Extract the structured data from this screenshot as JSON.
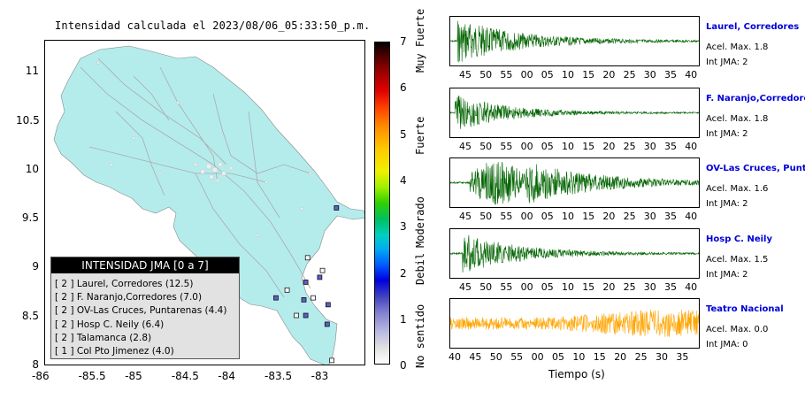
{
  "map": {
    "title": "Intensidad calculada el 2023/08/06_05:33:50_p.m.",
    "x_ticks": [
      "-86",
      "-85.5",
      "-85",
      "-84.5",
      "-84",
      "-83.5",
      "-83"
    ],
    "y_ticks": [
      "11",
      "10.5",
      "10",
      "9.5",
      "9",
      "8.5",
      "8"
    ],
    "land_color": "#b4ecec",
    "stations": [
      {
        "lon": -82.87,
        "lat": 9.62,
        "intensity": 2
      },
      {
        "lon": -83.18,
        "lat": 9.11,
        "intensity": 0
      },
      {
        "lon": -83.02,
        "lat": 8.98,
        "intensity": 0
      },
      {
        "lon": -83.05,
        "lat": 8.91,
        "intensity": 2
      },
      {
        "lon": -83.2,
        "lat": 8.86,
        "intensity": 2
      },
      {
        "lon": -83.4,
        "lat": 8.78,
        "intensity": 0
      },
      {
        "lon": -83.12,
        "lat": 8.7,
        "intensity": 0
      },
      {
        "lon": -83.52,
        "lat": 8.7,
        "intensity": 2
      },
      {
        "lon": -83.22,
        "lat": 8.68,
        "intensity": 2
      },
      {
        "lon": -82.96,
        "lat": 8.63,
        "intensity": 2
      },
      {
        "lon": -83.2,
        "lat": 8.52,
        "intensity": 2
      },
      {
        "lon": -83.3,
        "lat": 8.52,
        "intensity": 0
      },
      {
        "lon": -82.97,
        "lat": 8.43,
        "intensity": 2
      },
      {
        "lon": -82.92,
        "lat": 8.06,
        "intensity": 0
      }
    ]
  },
  "colorbar": {
    "numbers": [
      "7",
      "6",
      "5",
      "4",
      "3",
      "2",
      "1",
      "0"
    ],
    "categories": [
      "Muy Fuerte",
      "Fuerte",
      "Moderado",
      "Debil",
      "No sentido"
    ]
  },
  "legend": {
    "title": "INTENSIDAD JMA [0 a 7]",
    "items": [
      "[ 2 ] Laurel, Corredores (12.5)",
      "[ 2 ] F. Naranjo,Corredores (7.0)",
      "[ 2 ] OV-Las Cruces, Puntarenas (4.4)",
      "[ 2 ] Hosp C. Neily (6.4)",
      "[ 2 ] Talamanca (2.8)",
      "[ 1 ] Col Pto Jimenez (4.0)"
    ]
  },
  "traces": [
    {
      "name": "Laurel, Corredores",
      "acel": "Acel. Max. 1.8",
      "int": "Int JMA: 2",
      "color": "#006400",
      "ticks": [
        "45",
        "50",
        "55",
        "00",
        "05",
        "10",
        "15",
        "20",
        "25",
        "30",
        "35",
        "40"
      ],
      "onset": 0.03,
      "decay": 0.25,
      "amp": 0.95
    },
    {
      "name": "F. Naranjo,Corredores",
      "acel": "Acel. Max. 1.8",
      "int": "Int JMA: 2",
      "color": "#006400",
      "ticks": [
        "45",
        "50",
        "55",
        "00",
        "05",
        "10",
        "15",
        "20",
        "25",
        "30",
        "35",
        "40"
      ],
      "onset": 0.02,
      "decay": 0.2,
      "amp": 0.8
    },
    {
      "name": "OV-Las Cruces, Puntar",
      "acel": "Acel. Max. 1.6",
      "int": "Int JMA: 2",
      "color": "#006400",
      "ticks": [
        "45",
        "50",
        "55",
        "00",
        "05",
        "10",
        "15",
        "20",
        "25",
        "30",
        "35",
        "40"
      ],
      "onset": 0.08,
      "decay": 0.28,
      "amp": 0.95
    },
    {
      "name": "Hosp C. Neily",
      "acel": "Acel. Max. 1.5",
      "int": "Int JMA: 2",
      "color": "#006400",
      "ticks": [
        "45",
        "50",
        "55",
        "00",
        "05",
        "10",
        "15",
        "20",
        "25",
        "30",
        "35",
        "40"
      ],
      "onset": 0.05,
      "decay": 0.22,
      "amp": 0.9
    },
    {
      "name": "Teatro Nacional",
      "acel": "Acel. Max. 0.0",
      "int": "Int JMA: 0",
      "color": "#ffa500",
      "ticks": [
        "40",
        "45",
        "50",
        "55",
        "00",
        "05",
        "10",
        "15",
        "20",
        "25",
        "30",
        "35"
      ],
      "onset": 0.0,
      "decay": 0,
      "amp": 0.6
    }
  ],
  "xlabel": "Tiempo (s)"
}
